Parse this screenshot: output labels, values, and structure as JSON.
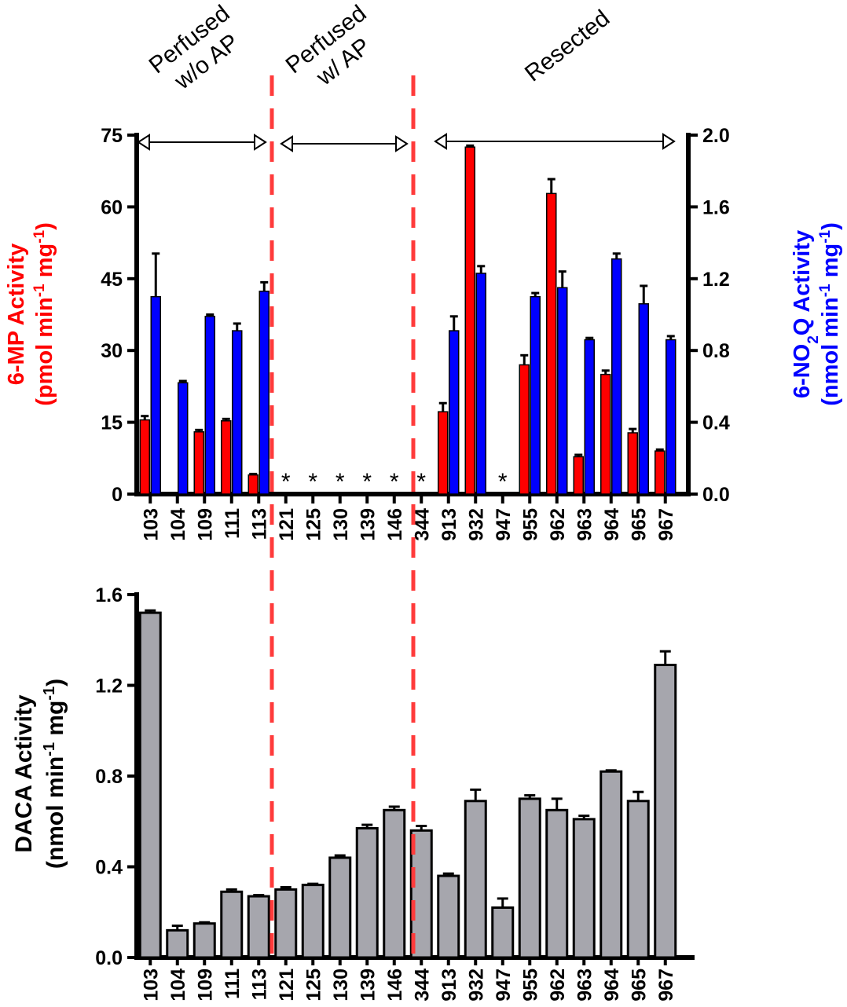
{
  "chart_data": [
    {
      "type": "bar",
      "categories": [
        "103",
        "104",
        "109",
        "111",
        "113",
        "121",
        "125",
        "130",
        "139",
        "146",
        "344",
        "913",
        "932",
        "947",
        "955",
        "962",
        "963",
        "964",
        "965",
        "967"
      ],
      "groups": [
        {
          "label_lines": [
            "Perfused",
            "w/o AP"
          ]
        },
        {
          "label_lines": [
            "Perfused",
            "w/ AP"
          ]
        },
        {
          "label_lines": [
            "Resected"
          ]
        }
      ],
      "not_detected_marker": "*",
      "not_detected_categories": [
        "121",
        "125",
        "130",
        "139",
        "146",
        "344",
        "947"
      ],
      "y_left": {
        "label_line1": "6-MP Activity",
        "label_line2_prefix": "(pmol min",
        "label_sup1": "-1",
        "label_mid": " mg",
        "label_sup2": "-1",
        "label_suffix": ")",
        "ylim": [
          0,
          75
        ],
        "ticks": [
          "0",
          "15",
          "30",
          "45",
          "60",
          "75"
        ],
        "color": "#ff0000"
      },
      "y_right": {
        "label_line1_prefix": "6-NO",
        "label_line1_sub": "2",
        "label_line1_suffix": "Q Activity",
        "label_line2_prefix": "(nmol min",
        "label_sup1": "-1",
        "label_mid": " mg",
        "label_sup2": "-1",
        "label_suffix": ")",
        "ylim": [
          0,
          2.0
        ],
        "ticks": [
          "0.0",
          "0.4",
          "0.8",
          "1.2",
          "1.6",
          "2.0"
        ],
        "color": "#0000ff"
      },
      "series": [
        {
          "axis": "left",
          "color": "#ff0000",
          "values": [
            15.5,
            null,
            13.0,
            15.3,
            4.0,
            null,
            null,
            null,
            null,
            null,
            null,
            17.2,
            72.5,
            null,
            27.0,
            62.8,
            7.8,
            25.0,
            12.8,
            9.0
          ],
          "errors": [
            0.8,
            null,
            0.4,
            0.4,
            0.2,
            null,
            null,
            null,
            null,
            null,
            null,
            1.8,
            0.3,
            null,
            2.0,
            3.0,
            0.4,
            0.8,
            0.8,
            0.3
          ]
        },
        {
          "axis": "right",
          "color": "#0000ff",
          "values": [
            1.1,
            0.62,
            0.99,
            0.91,
            1.13,
            null,
            null,
            null,
            null,
            null,
            null,
            0.91,
            1.23,
            null,
            1.1,
            1.15,
            0.86,
            1.31,
            1.06,
            0.86
          ],
          "errors": [
            0.24,
            0.01,
            0.01,
            0.04,
            0.05,
            null,
            null,
            null,
            null,
            null,
            null,
            0.08,
            0.04,
            null,
            0.02,
            0.09,
            0.01,
            0.03,
            0.1,
            0.02
          ]
        }
      ]
    },
    {
      "type": "bar",
      "categories": [
        "103",
        "104",
        "109",
        "111",
        "113",
        "121",
        "125",
        "130",
        "139",
        "146",
        "344",
        "913",
        "932",
        "947",
        "955",
        "962",
        "963",
        "964",
        "965",
        "967"
      ],
      "y": {
        "label_line1": "DACA Activity",
        "label_line2_prefix": "(nmol min",
        "label_sup1": "-1",
        "label_mid": " mg",
        "label_sup2": "-1",
        "label_suffix": ")",
        "ylim": [
          0,
          1.6
        ],
        "ticks": [
          "0.0",
          "0.4",
          "0.8",
          "1.2",
          "1.6"
        ]
      },
      "series": [
        {
          "color": "#a6a6ad",
          "values": [
            1.52,
            0.12,
            0.15,
            0.29,
            0.27,
            0.3,
            0.32,
            0.44,
            0.57,
            0.65,
            0.56,
            0.36,
            0.69,
            0.22,
            0.7,
            0.65,
            0.61,
            0.82,
            0.69,
            1.29
          ],
          "errors": [
            0.01,
            0.02,
            0.005,
            0.01,
            0.005,
            0.01,
            0.005,
            0.01,
            0.015,
            0.015,
            0.02,
            0.01,
            0.05,
            0.04,
            0.015,
            0.05,
            0.015,
            0.005,
            0.04,
            0.06
          ]
        }
      ]
    }
  ]
}
